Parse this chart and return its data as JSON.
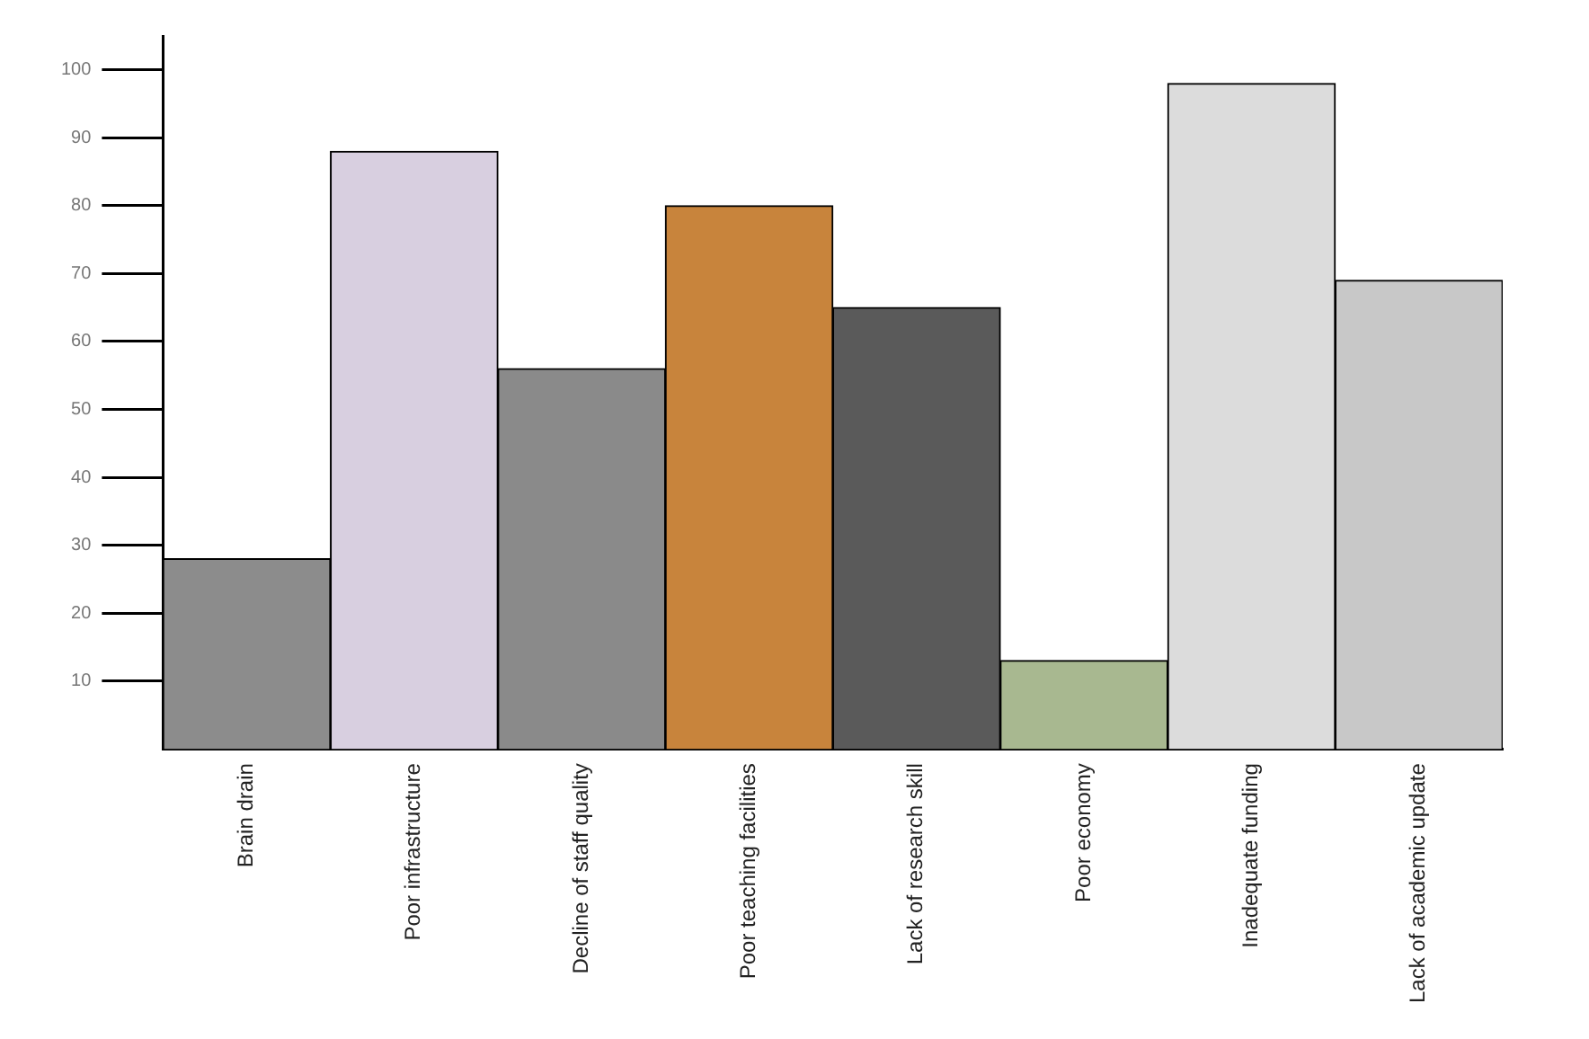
{
  "chart_data": {
    "type": "bar",
    "categories": [
      "Brain drain",
      "Poor infrastructure",
      "Decline of staff quality",
      "Poor teaching facilities",
      "Lack of research skill",
      "Poor economy",
      "Inadequate funding",
      "Lack of academic update"
    ],
    "values": [
      28,
      88,
      56,
      80,
      65,
      13,
      98,
      69
    ],
    "colors": [
      "#8c8c8c",
      "#d8cfe0",
      "#8a8a8a",
      "#c8843c",
      "#5a5a5a",
      "#a8b890",
      "#dcdcdc",
      "#c8c8c8"
    ],
    "ylim": [
      0,
      105
    ],
    "yticks": [
      10,
      20,
      30,
      40,
      50,
      60,
      70,
      80,
      90,
      100
    ],
    "grid": false,
    "legend": false
  }
}
